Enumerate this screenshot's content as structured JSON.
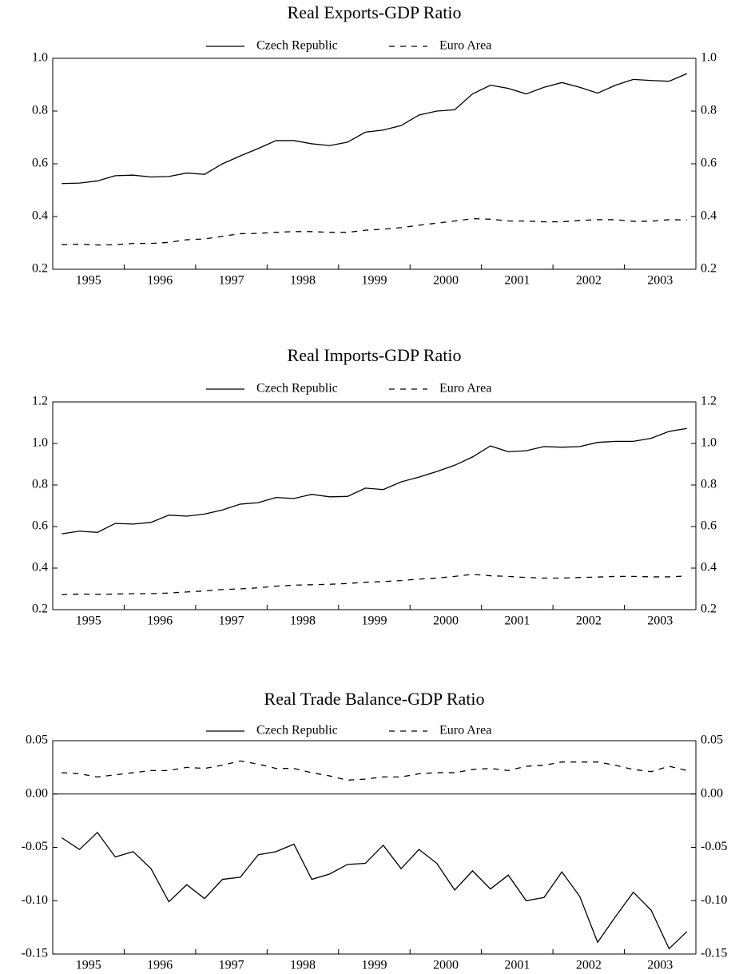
{
  "chart_data": [
    {
      "type": "line",
      "title": "Real Exports-GDP Ratio",
      "categories": [
        null,
        "1995",
        null,
        null,
        null,
        "1996",
        null,
        null,
        null,
        "1997",
        null,
        null,
        null,
        "1998",
        null,
        null,
        null,
        "1999",
        null,
        null,
        null,
        "2000",
        null,
        null,
        null,
        "2001",
        null,
        null,
        null,
        "2002",
        null,
        null,
        null,
        "2003",
        null,
        null
      ],
      "series": [
        {
          "name": "Czech Republic",
          "color": "#000000",
          "style": "solid",
          "values": [
            0.525,
            0.527,
            0.535,
            0.555,
            0.557,
            0.55,
            0.552,
            0.565,
            0.56,
            0.6,
            0.63,
            0.658,
            0.688,
            0.688,
            0.676,
            0.669,
            0.682,
            0.72,
            0.728,
            0.745,
            0.785,
            0.8,
            0.805,
            0.865,
            0.898,
            0.886,
            0.865,
            0.89,
            0.908,
            0.89,
            0.868,
            0.898,
            0.92,
            0.916,
            0.913,
            0.942
          ]
        },
        {
          "name": "Euro Area",
          "color": "#000000",
          "style": "dashed",
          "values": [
            0.293,
            0.295,
            0.292,
            0.293,
            0.298,
            0.298,
            0.302,
            0.312,
            0.315,
            0.325,
            0.335,
            0.336,
            0.34,
            0.343,
            0.343,
            0.34,
            0.34,
            0.348,
            0.352,
            0.358,
            0.367,
            0.375,
            0.383,
            0.392,
            0.39,
            0.383,
            0.383,
            0.38,
            0.38,
            0.385,
            0.388,
            0.388,
            0.382,
            0.382,
            0.388,
            0.387
          ]
        }
      ],
      "ylim": [
        0.2,
        1.0
      ],
      "yticks": [
        0.2,
        0.4,
        0.6,
        0.8,
        {
          "value": 1.0,
          "label": "1.0"
        }
      ],
      "grid": false,
      "legend": "top"
    },
    {
      "type": "line",
      "title": "Real Imports-GDP Ratio",
      "categories": [
        null,
        "1995",
        null,
        null,
        null,
        "1996",
        null,
        null,
        null,
        "1997",
        null,
        null,
        null,
        "1998",
        null,
        null,
        null,
        "1999",
        null,
        null,
        null,
        "2000",
        null,
        null,
        null,
        "2001",
        null,
        null,
        null,
        "2002",
        null,
        null,
        null,
        "2003",
        null,
        null
      ],
      "series": [
        {
          "name": "Czech Republic",
          "color": "#000000",
          "style": "solid",
          "values": [
            0.565,
            0.578,
            0.572,
            0.615,
            0.612,
            0.62,
            0.655,
            0.65,
            0.66,
            0.68,
            0.708,
            0.715,
            0.74,
            0.735,
            0.755,
            0.743,
            0.745,
            0.785,
            0.778,
            0.815,
            0.838,
            0.865,
            0.895,
            0.935,
            0.988,
            0.96,
            0.965,
            0.985,
            0.982,
            0.985,
            1.005,
            1.01,
            1.01,
            1.025,
            1.058,
            1.072
          ]
        },
        {
          "name": "Euro Area",
          "color": "#000000",
          "style": "dashed",
          "values": [
            0.272,
            0.275,
            0.274,
            0.275,
            0.277,
            0.277,
            0.28,
            0.285,
            0.29,
            0.297,
            0.3,
            0.305,
            0.313,
            0.318,
            0.32,
            0.322,
            0.326,
            0.332,
            0.335,
            0.34,
            0.347,
            0.352,
            0.36,
            0.37,
            0.363,
            0.36,
            0.355,
            0.352,
            0.352,
            0.355,
            0.357,
            0.36,
            0.36,
            0.358,
            0.358,
            0.362
          ]
        }
      ],
      "ylim": [
        0.2,
        1.2
      ],
      "yticks": [
        0.2,
        0.4,
        0.6,
        0.8,
        {
          "value": 1.0,
          "label": "1.0"
        },
        1.2
      ],
      "grid": false,
      "legend": "top"
    },
    {
      "type": "line",
      "title": "Real Trade Balance-GDP Ratio",
      "categories": [
        null,
        "1995",
        null,
        null,
        null,
        "1996",
        null,
        null,
        null,
        "1997",
        null,
        null,
        null,
        "1998",
        null,
        null,
        null,
        "1999",
        null,
        null,
        null,
        "2000",
        null,
        null,
        null,
        "2001",
        null,
        null,
        null,
        "2002",
        null,
        null,
        null,
        "2003",
        null,
        null
      ],
      "series": [
        {
          "name": "Czech Republic",
          "color": "#000000",
          "style": "solid",
          "values": [
            -0.041,
            -0.052,
            -0.036,
            -0.059,
            -0.054,
            -0.07,
            -0.101,
            -0.085,
            -0.098,
            -0.08,
            -0.078,
            -0.057,
            -0.054,
            -0.047,
            -0.08,
            -0.075,
            -0.066,
            -0.065,
            -0.048,
            -0.07,
            -0.052,
            -0.065,
            -0.09,
            -0.072,
            -0.089,
            -0.076,
            -0.1,
            -0.097,
            -0.073,
            -0.096,
            -0.139,
            -0.115,
            -0.092,
            -0.109,
            -0.145,
            -0.129
          ]
        },
        {
          "name": "Euro Area",
          "color": "#000000",
          "style": "dashed",
          "values": [
            0.02,
            0.019,
            0.016,
            0.018,
            0.02,
            0.022,
            0.022,
            0.025,
            0.024,
            0.027,
            0.031,
            0.028,
            0.024,
            0.024,
            0.02,
            0.017,
            0.013,
            0.014,
            0.016,
            0.016,
            0.019,
            0.02,
            0.02,
            0.023,
            0.024,
            0.022,
            0.026,
            0.027,
            0.03,
            0.03,
            0.03,
            0.027,
            0.023,
            0.021,
            0.026,
            0.022
          ]
        }
      ],
      "ylim": [
        -0.15,
        0.05
      ],
      "yticks": [
        -0.15,
        {
          "value": -0.1,
          "label": "-0.10"
        },
        -0.05,
        {
          "value": 0,
          "label": "0.00"
        },
        0.05
      ],
      "grid": false,
      "zero_line": true,
      "legend": "top"
    }
  ]
}
